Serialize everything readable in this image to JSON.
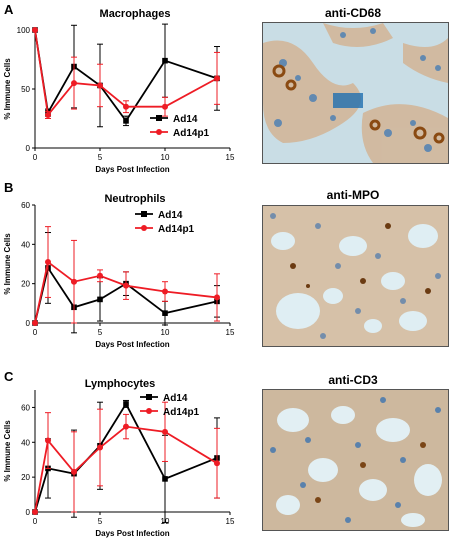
{
  "chart_data": [
    {
      "type": "line",
      "panel": "A",
      "title": "Macrophages",
      "xlabel": "Days Post Infection",
      "ylabel": "% Immune Cells",
      "xlim": [
        0,
        15
      ],
      "ylim": [
        0,
        100
      ],
      "xticks": [
        0,
        5,
        10,
        15
      ],
      "yticks": [
        0,
        50,
        100
      ],
      "legend_position": "right",
      "x": [
        0,
        1,
        3,
        5,
        7,
        10,
        14
      ],
      "series": [
        {
          "name": "Ad14",
          "color": "#000000",
          "values": [
            100,
            30,
            69,
            53,
            23,
            74,
            59
          ],
          "errors": [
            0,
            3,
            35,
            35,
            4,
            31,
            27
          ]
        },
        {
          "name": "Ad14p1",
          "color": "#ee1c25",
          "values": [
            100,
            28,
            55,
            53,
            35,
            35,
            59
          ],
          "errors": [
            0,
            3,
            22,
            18,
            5,
            8,
            22
          ]
        }
      ]
    },
    {
      "type": "line",
      "panel": "B",
      "title": "Neutrophils",
      "xlabel": "Days Post Infection",
      "ylabel": "% Immune Cells",
      "xlim": [
        0,
        15
      ],
      "ylim": [
        0,
        60
      ],
      "xticks": [
        0,
        5,
        10,
        15
      ],
      "yticks": [
        0,
        20,
        40,
        60
      ],
      "legend_position": "top-right",
      "x": [
        0,
        1,
        3,
        5,
        7,
        10,
        14
      ],
      "series": [
        {
          "name": "Ad14",
          "color": "#000000",
          "values": [
            0,
            28,
            8,
            12,
            20,
            5,
            11
          ],
          "errors": [
            0,
            18,
            13,
            11,
            6,
            6,
            8
          ]
        },
        {
          "name": "Ad14p1",
          "color": "#ee1c25",
          "values": [
            0,
            31,
            21,
            24,
            19,
            16,
            13
          ],
          "errors": [
            0,
            18,
            21,
            3,
            7,
            5,
            12
          ]
        }
      ]
    },
    {
      "type": "line",
      "panel": "C",
      "title": "Lymphocytes",
      "xlabel": "Days Post Infection",
      "ylabel": "% Immune Cells",
      "xlim": [
        0,
        15
      ],
      "ylim": [
        0,
        70
      ],
      "xticks": [
        0,
        5,
        10,
        15
      ],
      "yticks": [
        0,
        20,
        40,
        60
      ],
      "legend_position": "top-right",
      "x": [
        0,
        1,
        3,
        5,
        7,
        10,
        14
      ],
      "series": [
        {
          "name": "Ad14",
          "color": "#000000",
          "values": [
            0,
            25,
            22,
            38,
            62,
            19,
            31
          ],
          "errors": [
            0,
            17,
            25,
            25,
            2,
            25,
            23
          ]
        },
        {
          "name": "Ad14p1",
          "color": "#ee1c25",
          "values": [
            0,
            41,
            23,
            37,
            49,
            46,
            28
          ],
          "errors": [
            0,
            16,
            23,
            22,
            7,
            17,
            20
          ]
        }
      ]
    }
  ],
  "images": [
    {
      "label": "anti-CD68"
    },
    {
      "label": "anti-MPO"
    },
    {
      "label": "anti-CD3"
    }
  ]
}
